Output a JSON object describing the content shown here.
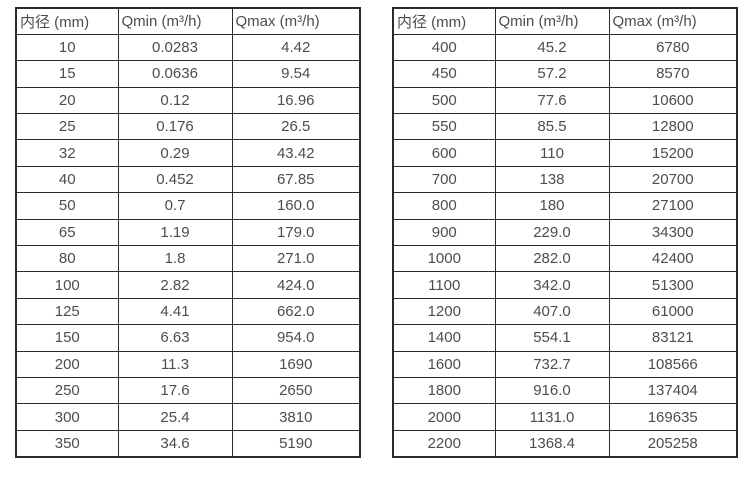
{
  "colors": {
    "border": "#2b2b2b",
    "text": "#4d4d4d",
    "background": "#ffffff"
  },
  "tables": [
    {
      "title": "small-diameter-flow-range",
      "headers": [
        "内径 (mm)",
        "Qmin (m³/h)",
        "Qmax (m³/h)"
      ],
      "rows": [
        [
          "10",
          "0.0283",
          "4.42"
        ],
        [
          "15",
          "0.0636",
          "9.54"
        ],
        [
          "20",
          "0.12",
          "16.96"
        ],
        [
          "25",
          "0.176",
          "26.5"
        ],
        [
          "32",
          "0.29",
          "43.42"
        ],
        [
          "40",
          "0.452",
          "67.85"
        ],
        [
          "50",
          "0.7",
          "160.0"
        ],
        [
          "65",
          "1.19",
          "179.0"
        ],
        [
          "80",
          "1.8",
          "271.0"
        ],
        [
          "100",
          "2.82",
          "424.0"
        ],
        [
          "125",
          "4.41",
          "662.0"
        ],
        [
          "150",
          "6.63",
          "954.0"
        ],
        [
          "200",
          "11.3",
          "1690"
        ],
        [
          "250",
          "17.6",
          "2650"
        ],
        [
          "300",
          "25.4",
          "3810"
        ],
        [
          "350",
          "34.6",
          "5190"
        ]
      ]
    },
    {
      "title": "large-diameter-flow-range",
      "headers": [
        "内径 (mm)",
        "Qmin (m³/h)",
        "Qmax (m³/h)"
      ],
      "rows": [
        [
          "400",
          "45.2",
          "6780"
        ],
        [
          "450",
          "57.2",
          "8570"
        ],
        [
          "500",
          "77.6",
          "10600"
        ],
        [
          "550",
          "85.5",
          "12800"
        ],
        [
          "600",
          "110",
          "15200"
        ],
        [
          "700",
          "138",
          "20700"
        ],
        [
          "800",
          "180",
          "27100"
        ],
        [
          "900",
          "229.0",
          "34300"
        ],
        [
          "1000",
          "282.0",
          "42400"
        ],
        [
          "1100",
          "342.0",
          "51300"
        ],
        [
          "1200",
          "407.0",
          "61000"
        ],
        [
          "1400",
          "554.1",
          "83121"
        ],
        [
          "1600",
          "732.7",
          "108566"
        ],
        [
          "1800",
          "916.0",
          "137404"
        ],
        [
          "2000",
          "1131.0",
          "169635"
        ],
        [
          "2200",
          "1368.4",
          "205258"
        ]
      ]
    }
  ]
}
